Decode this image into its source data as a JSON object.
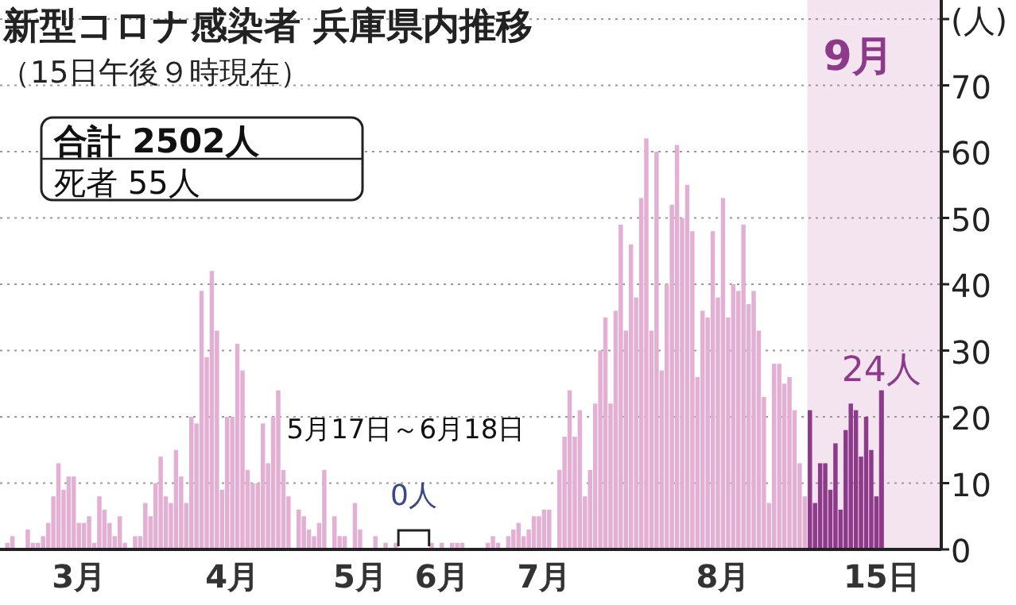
{
  "chart_data": {
    "type": "bar",
    "title": "新型コロナ感染者 兵庫県内推移",
    "subtitle": "（15日午後９時現在）",
    "annotations": [
      "合計 2502人",
      "死者 55人",
      "5月17日～6月18日",
      "0人",
      "9月"
    ],
    "categories": [
      null,
      null,
      null,
      null,
      null,
      null,
      null,
      null,
      null,
      null,
      null,
      null,
      null,
      null,
      "3月",
      null,
      null,
      null,
      null,
      null,
      null,
      null,
      null,
      null,
      null,
      null,
      null,
      null,
      null,
      null,
      null,
      null,
      null,
      null,
      null,
      null,
      null,
      null,
      null,
      null,
      null,
      null,
      null,
      null,
      "4月",
      null,
      null,
      null,
      null,
      null,
      null,
      null,
      null,
      null,
      null,
      null,
      null,
      null,
      null,
      null,
      null,
      null,
      null,
      null,
      null,
      null,
      null,
      null,
      null,
      "5月",
      null,
      null,
      null,
      null,
      null,
      null,
      null,
      null,
      null,
      null,
      null,
      null,
      null,
      null,
      null,
      "6月",
      null,
      null,
      null,
      null,
      null,
      null,
      null,
      null,
      null,
      null,
      null,
      null,
      null,
      null,
      null,
      null,
      null,
      null,
      null,
      "7月",
      null,
      null,
      null,
      null,
      null,
      null,
      null,
      null,
      null,
      null,
      null,
      null,
      null,
      null,
      null,
      null,
      null,
      null,
      null,
      null,
      null,
      null,
      null,
      null,
      null,
      null,
      null,
      null,
      null,
      null,
      null,
      null,
      null,
      null,
      "8月",
      null,
      null,
      null,
      null,
      null,
      null,
      null,
      null,
      null,
      null,
      null,
      null,
      null,
      null,
      null,
      null,
      null,
      null,
      null,
      null,
      null,
      null,
      null,
      null,
      null,
      null,
      null,
      null,
      null,
      null,
      "15日"
    ],
    "series": [
      {
        "color": "#e3b0d3",
        "values": [
          1,
          2,
          0,
          0,
          3,
          1,
          1,
          2,
          4,
          8,
          13,
          9,
          11,
          11,
          4,
          4,
          5,
          1,
          8,
          6,
          4,
          2,
          5,
          1,
          0,
          2,
          2,
          7,
          5,
          10,
          14,
          8,
          7,
          15,
          11,
          7,
          20,
          19,
          39,
          29,
          42,
          33,
          9,
          20,
          20,
          31,
          27,
          12,
          10,
          10,
          19,
          13,
          20,
          24,
          12,
          8,
          0,
          6,
          5,
          3,
          2,
          4,
          12,
          0,
          5,
          2,
          2,
          0,
          7,
          3,
          0,
          0,
          2,
          0,
          1,
          0,
          1,
          null,
          null,
          null,
          null,
          null,
          null,
          1,
          0,
          1,
          0,
          1,
          1,
          1,
          0,
          0,
          0,
          0,
          1,
          2,
          1,
          0,
          2,
          3,
          4,
          2,
          3,
          5,
          5,
          6,
          6,
          0,
          12,
          17,
          24,
          17,
          21,
          8,
          12,
          22,
          30,
          35,
          22,
          36,
          49,
          33,
          46,
          38,
          53,
          62,
          33,
          60,
          27,
          40,
          52,
          61,
          50,
          55,
          48,
          26,
          36,
          35,
          48,
          38,
          53,
          35,
          40,
          39,
          49,
          37,
          39,
          33,
          23,
          7,
          28,
          28,
          25,
          26,
          21,
          13,
          8,
          null,
          null,
          null,
          null,
          null,
          null,
          null,
          null,
          null,
          null,
          null,
          null,
          null,
          null,
          null
        ]
      },
      {
        "color": "#8e3a8b",
        "values": [
          null,
          null,
          null,
          null,
          null,
          null,
          null,
          null,
          null,
          null,
          null,
          null,
          null,
          null,
          null,
          null,
          null,
          null,
          null,
          null,
          null,
          null,
          null,
          null,
          null,
          null,
          null,
          null,
          null,
          null,
          null,
          null,
          null,
          null,
          null,
          null,
          null,
          null,
          null,
          null,
          null,
          null,
          null,
          null,
          null,
          null,
          null,
          null,
          null,
          null,
          null,
          null,
          null,
          null,
          null,
          null,
          null,
          null,
          null,
          null,
          null,
          null,
          null,
          null,
          null,
          null,
          null,
          null,
          null,
          null,
          null,
          null,
          null,
          null,
          null,
          null,
          null,
          null,
          null,
          null,
          null,
          null,
          null,
          null,
          null,
          null,
          null,
          null,
          null,
          null,
          null,
          null,
          null,
          null,
          null,
          null,
          null,
          null,
          null,
          null,
          null,
          null,
          null,
          null,
          null,
          null,
          null,
          null,
          null,
          null,
          null,
          null,
          null,
          null,
          null,
          null,
          null,
          null,
          null,
          null,
          null,
          null,
          null,
          null,
          null,
          null,
          null,
          null,
          null,
          null,
          null,
          null,
          null,
          null,
          null,
          null,
          null,
          null,
          null,
          null,
          null,
          null,
          null,
          null,
          null,
          null,
          null,
          null,
          null,
          null,
          null,
          null,
          null,
          null,
          null,
          null,
          null,
          21,
          7,
          13,
          13,
          9,
          16,
          6,
          18,
          22,
          21,
          14,
          20,
          15,
          8,
          24
        ],
        "value_labels": [
          null,
          null,
          null,
          null,
          null,
          null,
          null,
          null,
          null,
          null,
          null,
          null,
          null,
          null,
          null,
          null,
          null,
          null,
          null,
          null,
          null,
          null,
          null,
          null,
          null,
          null,
          null,
          null,
          null,
          null,
          null,
          null,
          null,
          null,
          null,
          null,
          null,
          null,
          null,
          null,
          null,
          null,
          null,
          null,
          null,
          null,
          null,
          null,
          null,
          null,
          null,
          null,
          null,
          null,
          null,
          null,
          null,
          null,
          null,
          null,
          null,
          null,
          null,
          null,
          null,
          null,
          null,
          null,
          null,
          null,
          null,
          null,
          null,
          null,
          null,
          null,
          null,
          null,
          null,
          null,
          null,
          null,
          null,
          null,
          null,
          null,
          null,
          null,
          null,
          null,
          null,
          null,
          null,
          null,
          null,
          null,
          null,
          null,
          null,
          null,
          null,
          null,
          null,
          null,
          null,
          null,
          null,
          null,
          null,
          null,
          null,
          null,
          null,
          null,
          null,
          null,
          null,
          null,
          null,
          null,
          null,
          null,
          null,
          null,
          null,
          null,
          null,
          null,
          null,
          null,
          null,
          null,
          null,
          null,
          null,
          null,
          null,
          null,
          null,
          null,
          null,
          null,
          null,
          null,
          null,
          null,
          null,
          null,
          null,
          null,
          null,
          null,
          null,
          null,
          null,
          null,
          null,
          null,
          null,
          null,
          null,
          null,
          null,
          null,
          null,
          null,
          null,
          null,
          null,
          null,
          null,
          "24人"
        ]
      }
    ],
    "ylim": [
      0,
      80
    ],
    "yticks": [
      0,
      10,
      20,
      30,
      40,
      50,
      60,
      70,
      {
        "value": 80,
        "label": "(人)"
      }
    ],
    "grid": "y"
  }
}
